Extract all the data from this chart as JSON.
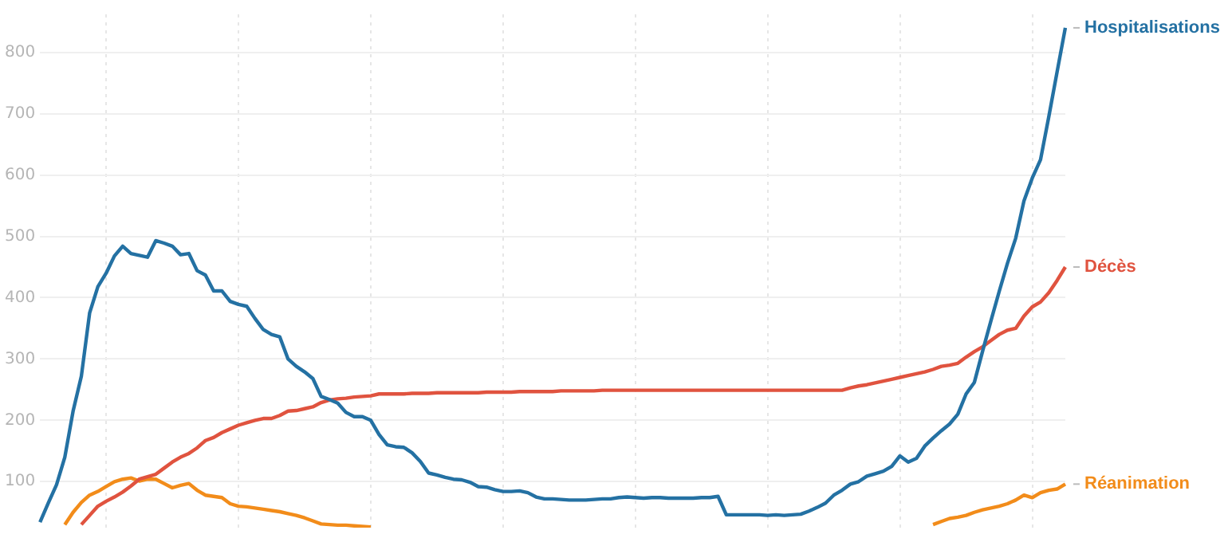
{
  "chart_data": {
    "type": "line",
    "categories": [
      null,
      null,
      null,
      null,
      null,
      null,
      null,
      null,
      null,
      null,
      null,
      null,
      null,
      null,
      null,
      null,
      null,
      null,
      null,
      null,
      null,
      null,
      null,
      null,
      null,
      null,
      null,
      null,
      null,
      null,
      null,
      null,
      null,
      null,
      null,
      null,
      null,
      null,
      null,
      null,
      null,
      null,
      null,
      null,
      null,
      null,
      null,
      null,
      null,
      null,
      null,
      null,
      null,
      null,
      null,
      null,
      null,
      null,
      null,
      null,
      null,
      null,
      null,
      null,
      null,
      null,
      null,
      null,
      null,
      null,
      null,
      null,
      null,
      null,
      null,
      null,
      null,
      null,
      null,
      null,
      null,
      null,
      null,
      null,
      null,
      null,
      null,
      null,
      null,
      null,
      null,
      null,
      null,
      null,
      null,
      null,
      null,
      null,
      null,
      null,
      null,
      null,
      null,
      null,
      null,
      null,
      null,
      null,
      null,
      null,
      null,
      null,
      null,
      null,
      null,
      null,
      null,
      null,
      null,
      null,
      null,
      null,
      null,
      null,
      null
    ],
    "series": [
      {
        "name": "Hospitalisations",
        "color": "#2471a3",
        "values": [
          34,
          65,
          95,
          140,
          215,
          272,
          375,
          418,
          440,
          468,
          484,
          472,
          469,
          466,
          493,
          489,
          484,
          470,
          472,
          444,
          437,
          411,
          411,
          394,
          389,
          386,
          366,
          348,
          340,
          336,
          300,
          288,
          279,
          268,
          239,
          234,
          228,
          213,
          206,
          206,
          200,
          177,
          160,
          157,
          156,
          147,
          133,
          114,
          111,
          107,
          104,
          103,
          99,
          92,
          91,
          87,
          84,
          84,
          85,
          82,
          75,
          72,
          72,
          71,
          70,
          70,
          70,
          71,
          72,
          72,
          74,
          75,
          74,
          73,
          74,
          74,
          73,
          73,
          73,
          73,
          74,
          74,
          76,
          46,
          46,
          46,
          46,
          46,
          45,
          46,
          45,
          46,
          47,
          52,
          58,
          65,
          78,
          86,
          96,
          100,
          109,
          113,
          117,
          125,
          142,
          132,
          138,
          158,
          171,
          183,
          194,
          210,
          243,
          262,
          313,
          362,
          410,
          456,
          497,
          558,
          595,
          625,
          695,
          768,
          840
        ]
      },
      {
        "name": "Décès",
        "color": "#e0533f",
        "values": [
          null,
          null,
          null,
          null,
          null,
          30,
          45,
          60,
          68,
          75,
          83,
          93,
          104,
          108,
          112,
          122,
          132,
          140,
          146,
          155,
          167,
          172,
          180,
          186,
          192,
          196,
          200,
          203,
          203,
          208,
          215,
          216,
          219,
          222,
          229,
          233,
          235,
          236,
          238,
          239,
          240,
          243,
          243,
          243,
          243,
          244,
          244,
          244,
          245,
          245,
          245,
          245,
          245,
          245,
          246,
          246,
          246,
          246,
          247,
          247,
          247,
          247,
          247,
          248,
          248,
          248,
          248,
          248,
          249,
          249,
          249,
          249,
          249,
          249,
          249,
          249,
          249,
          249,
          249,
          249,
          249,
          249,
          249,
          249,
          249,
          249,
          249,
          249,
          249,
          249,
          249,
          249,
          249,
          249,
          249,
          249,
          249,
          249,
          253,
          256,
          258,
          261,
          264,
          267,
          270,
          273,
          276,
          279,
          283,
          288,
          290,
          293,
          303,
          312,
          320,
          330,
          340,
          347,
          350,
          370,
          385,
          393,
          408,
          428,
          450
        ]
      },
      {
        "name": "Réanimation",
        "color": "#f28c1a",
        "values": [
          null,
          null,
          null,
          30,
          50,
          66,
          78,
          84,
          92,
          100,
          104,
          106,
          101,
          104,
          104,
          97,
          90,
          94,
          97,
          86,
          78,
          76,
          74,
          64,
          60,
          59,
          57,
          55,
          53,
          51,
          48,
          45,
          41,
          36,
          31,
          30,
          29,
          29,
          28,
          27,
          26,
          null,
          null,
          null,
          null,
          null,
          null,
          null,
          null,
          null,
          null,
          null,
          null,
          null,
          null,
          null,
          null,
          null,
          null,
          null,
          null,
          null,
          null,
          null,
          null,
          null,
          null,
          null,
          null,
          null,
          null,
          null,
          null,
          null,
          null,
          null,
          null,
          null,
          null,
          null,
          null,
          null,
          null,
          null,
          null,
          null,
          null,
          null,
          null,
          null,
          null,
          null,
          null,
          null,
          null,
          null,
          null,
          null,
          null,
          null,
          null,
          null,
          null,
          null,
          null,
          null,
          null,
          null,
          30,
          35,
          40,
          42,
          45,
          50,
          54,
          57,
          60,
          64,
          70,
          78,
          74,
          82,
          86,
          88,
          96
        ]
      }
    ],
    "ylim": [
      25,
      862
    ],
    "yticks": [
      100,
      200,
      300,
      400,
      500,
      600,
      700,
      800
    ],
    "tick_labels": "y",
    "grid": true,
    "legend": false,
    "marker": "none",
    "line_style": "solid"
  }
}
